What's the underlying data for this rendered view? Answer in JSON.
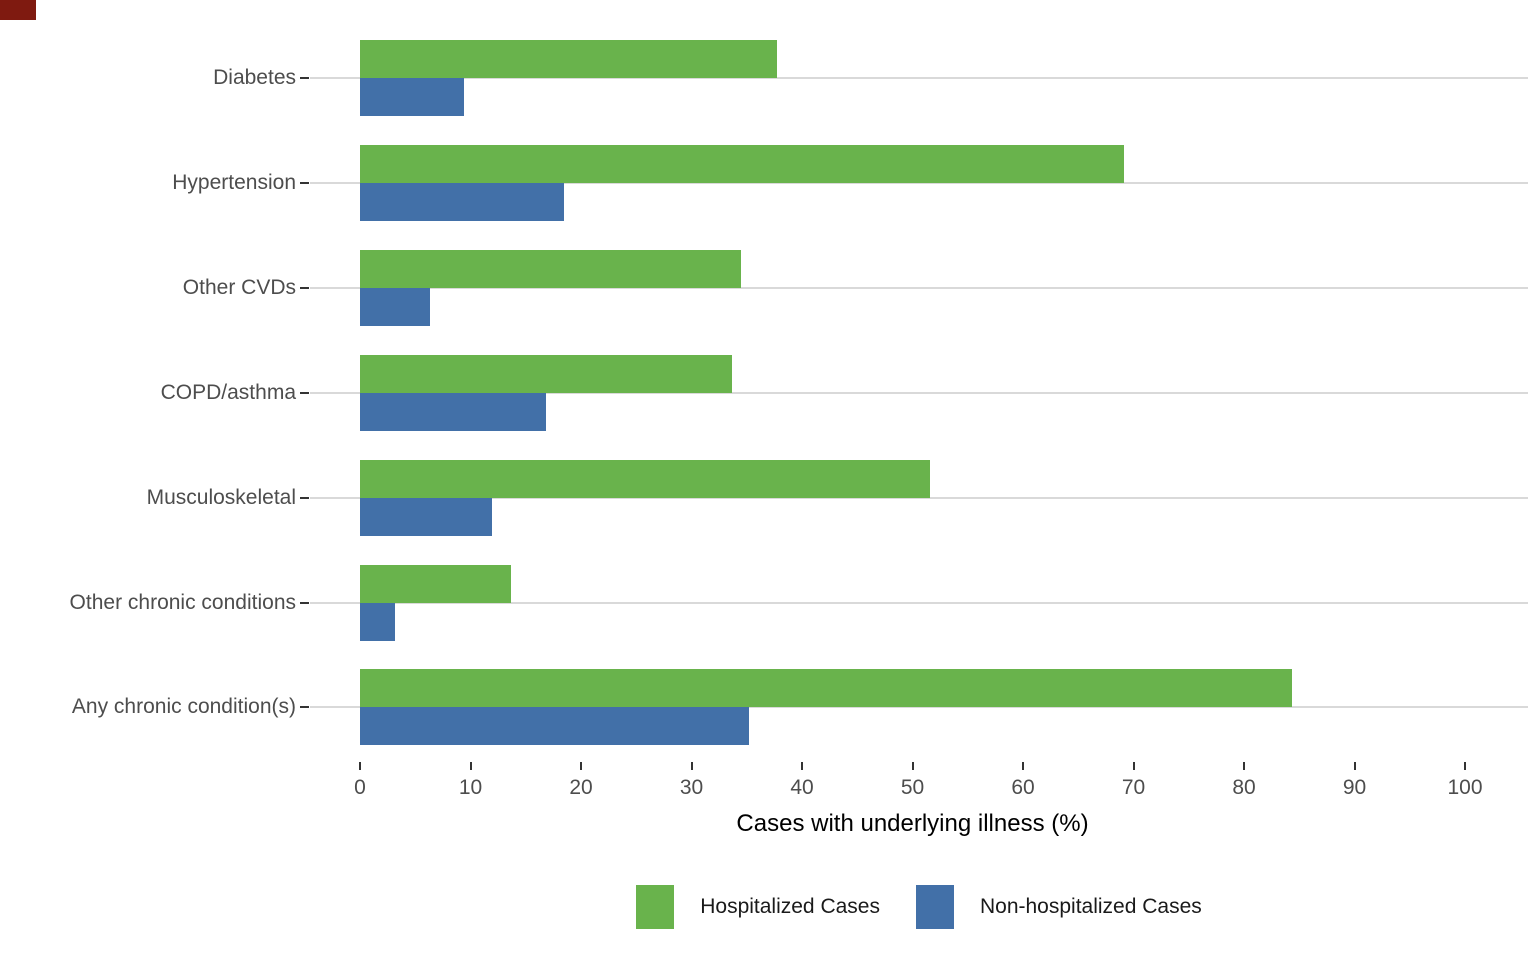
{
  "artifact": {
    "color": "#7f1a10"
  },
  "chart_data": {
    "type": "bar",
    "orientation": "horizontal",
    "title": "",
    "xlabel": "Cases with underlying illness (%)",
    "ylabel": "",
    "xlim": [
      0,
      105
    ],
    "x_ticks": [
      0,
      10,
      20,
      30,
      40,
      50,
      60,
      70,
      80,
      90,
      100
    ],
    "grid": "horizontal category gridlines, light gray, white panel background",
    "legend_position": "bottom",
    "categories": [
      "Diabetes",
      "Hypertension",
      "Other CVDs",
      "COPD/asthma",
      "Musculoskeletal",
      "Other chronic conditions",
      "Any chronic condition(s)"
    ],
    "series": [
      {
        "name": "Hospitalized Cases",
        "color": "#69b34c",
        "values": [
          37.7,
          69.1,
          34.5,
          33.7,
          51.6,
          13.7,
          84.3
        ]
      },
      {
        "name": "Non-hospitalized Cases",
        "color": "#4270a8",
        "values": [
          9.4,
          18.5,
          6.3,
          16.8,
          11.9,
          3.2,
          35.2
        ]
      }
    ]
  }
}
